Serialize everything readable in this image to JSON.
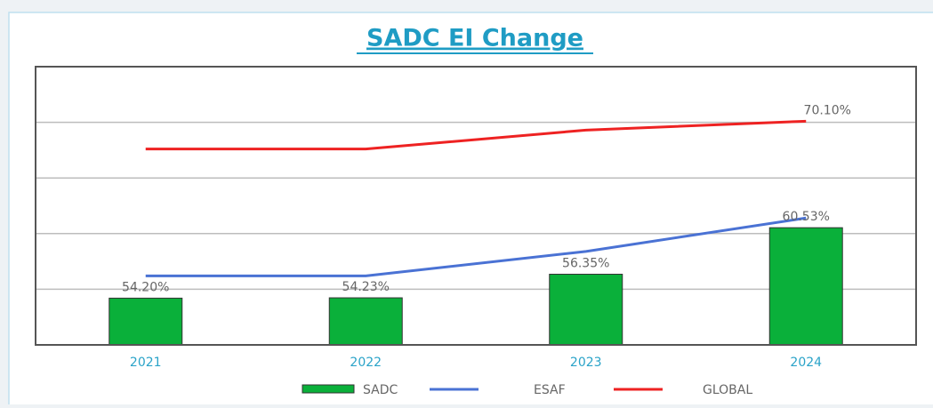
{
  "chart_data": {
    "type": "combo",
    "title": "SADC EI Change",
    "categories": [
      "2021",
      "2022",
      "2023",
      "2024"
    ],
    "series": [
      {
        "name": "SADC",
        "kind": "bar",
        "color": "#0ab03a",
        "values": [
          54.2,
          54.23,
          56.35,
          60.53
        ],
        "value_labels": [
          "54.20%",
          "54.23%",
          "56.35%",
          "60.53%"
        ]
      },
      {
        "name": "ESAF",
        "kind": "line",
        "color": "#4a72d4",
        "values": [
          56.2,
          56.2,
          58.4,
          61.4
        ]
      },
      {
        "name": "GLOBAL",
        "kind": "line",
        "color": "#ee2222",
        "values": [
          67.6,
          67.6,
          69.3,
          70.1
        ],
        "value_labels": [
          null,
          null,
          null,
          "70.10%"
        ]
      }
    ],
    "ylim": [
      50,
      75
    ],
    "yticks": [
      55,
      60,
      65,
      70
    ],
    "grid": true,
    "legend": "bottom"
  }
}
